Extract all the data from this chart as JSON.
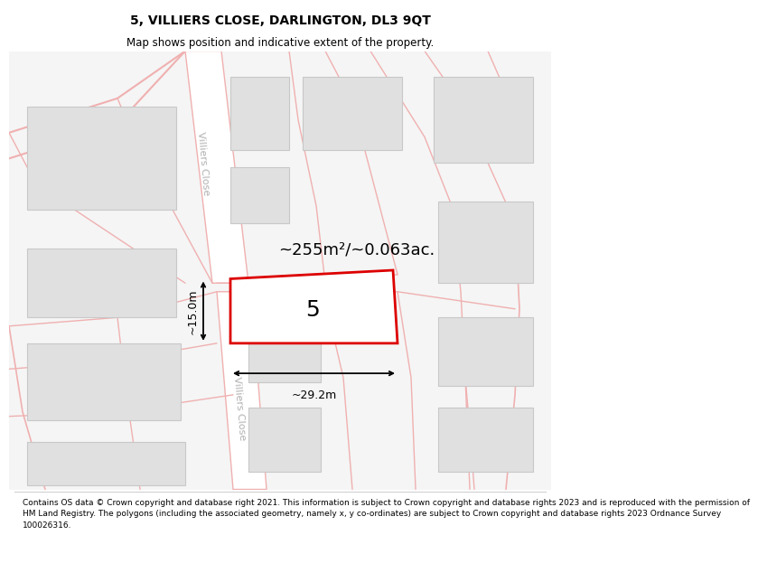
{
  "title": "5, VILLIERS CLOSE, DARLINGTON, DL3 9QT",
  "subtitle": "Map shows position and indicative extent of the property.",
  "footer": "Contains OS data © Crown copyright and database right 2021. This information is subject to Crown copyright and database rights 2023 and is reproduced with the permission of\nHM Land Registry. The polygons (including the associated geometry, namely x, y co-ordinates) are subject to Crown copyright and database rights 2023 Ordnance Survey\n100026316.",
  "map_bg": "#f5f5f5",
  "road_bg": "#ffffff",
  "road_line": "#f0b0b0",
  "building_fill": "#e0e0e0",
  "building_edge": "#c8c8c8",
  "plot_fill": "#ffffff",
  "plot_edge": "#dd0000",
  "street_label_color": "#b0b0b0",
  "area_text": "~255m²/~0.063ac.",
  "dim_width": "~29.2m",
  "dim_height": "~15.0m",
  "plot_number": "5",
  "title_fontsize": 10,
  "subtitle_fontsize": 8.5,
  "footer_fontsize": 6.5,
  "number_fontsize": 18,
  "area_fontsize": 13,
  "dim_fontsize": 9,
  "street_fontsize": 8
}
